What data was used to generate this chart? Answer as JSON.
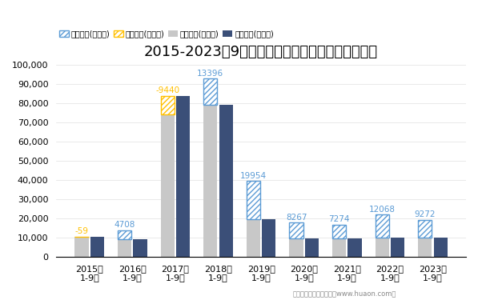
{
  "title": "2015-2023年9月贵州省外商投资企业进出口差额图",
  "categories": [
    "2015年\n1-9月",
    "2016年\n1-9月",
    "2017年\n1-9月",
    "2018年\n1-9月",
    "2019年\n1-9月",
    "2020年\n1-9月",
    "2021年\n1-9月",
    "2022年\n1-9月",
    "2023年\n1-9月"
  ],
  "export_total": [
    10541,
    13908,
    74440,
    92796,
    39454,
    17867,
    16774,
    22068,
    19272
  ],
  "import_total": [
    10600,
    9200,
    83880,
    79400,
    19500,
    9600,
    9500,
    10000,
    10000
  ],
  "surplus": [
    0,
    4708,
    0,
    13396,
    19954,
    8267,
    7274,
    12068,
    9272
  ],
  "deficit": [
    59,
    0,
    9440,
    0,
    0,
    0,
    0,
    0,
    0
  ],
  "surplus_labels": [
    "",
    "4708",
    "",
    "13396",
    "19954",
    "8267",
    "7274",
    "12068",
    "9272"
  ],
  "deficit_labels": [
    "-59",
    "",
    "-9440",
    "",
    "",
    "",
    "",
    "",
    ""
  ],
  "export_color": "#c8c8c8",
  "import_color": "#3b4f78",
  "surplus_hatch_color": "#5b9bd5",
  "deficit_hatch_color": "#ffc000",
  "surplus_label_color": "#5b9bd5",
  "deficit_label_color": "#ffc000",
  "ylim": [
    0,
    100000
  ],
  "yticks": [
    0,
    10000,
    20000,
    30000,
    40000,
    50000,
    60000,
    70000,
    80000,
    90000,
    100000
  ],
  "legend_labels": [
    "贸易顺差(万美元)",
    "贸易逆差(万美元)",
    "出口总额(万美元)",
    "进口总额(万美元)"
  ],
  "footer": "制图：华经产业研究院（www.huaon.com）",
  "title_fontsize": 13,
  "tick_fontsize": 8
}
